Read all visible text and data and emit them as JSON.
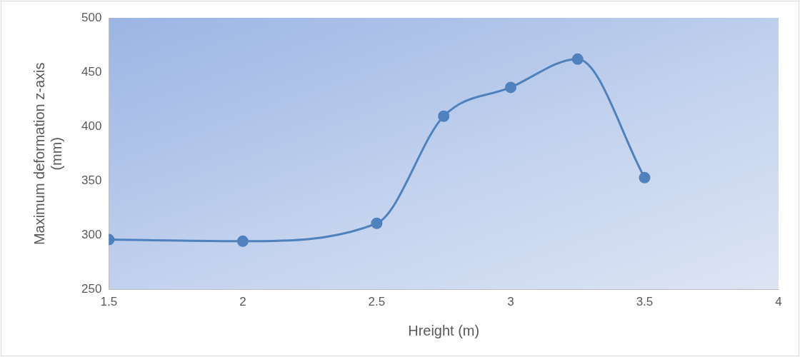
{
  "chart_data": {
    "type": "line",
    "xlabel": "Hreight (m)",
    "ylabel": "Maximum deformation z-axis (mm)",
    "x": [
      1.5,
      2,
      2.5,
      2.75,
      3,
      3.25,
      3.5
    ],
    "series": [
      {
        "color": "#4f81bd",
        "values": [
          296,
          294.5,
          311,
          409.5,
          436,
          462,
          353
        ]
      }
    ],
    "xlim": [
      1.5,
      4
    ],
    "xticks": [
      1.5,
      2,
      2.5,
      3,
      3.5,
      4
    ],
    "ylim": [
      250,
      500
    ],
    "yticks": [
      250,
      300,
      350,
      400,
      450,
      500
    ],
    "grid": false,
    "legend": false,
    "marker": "circle",
    "line_style": "solid"
  }
}
